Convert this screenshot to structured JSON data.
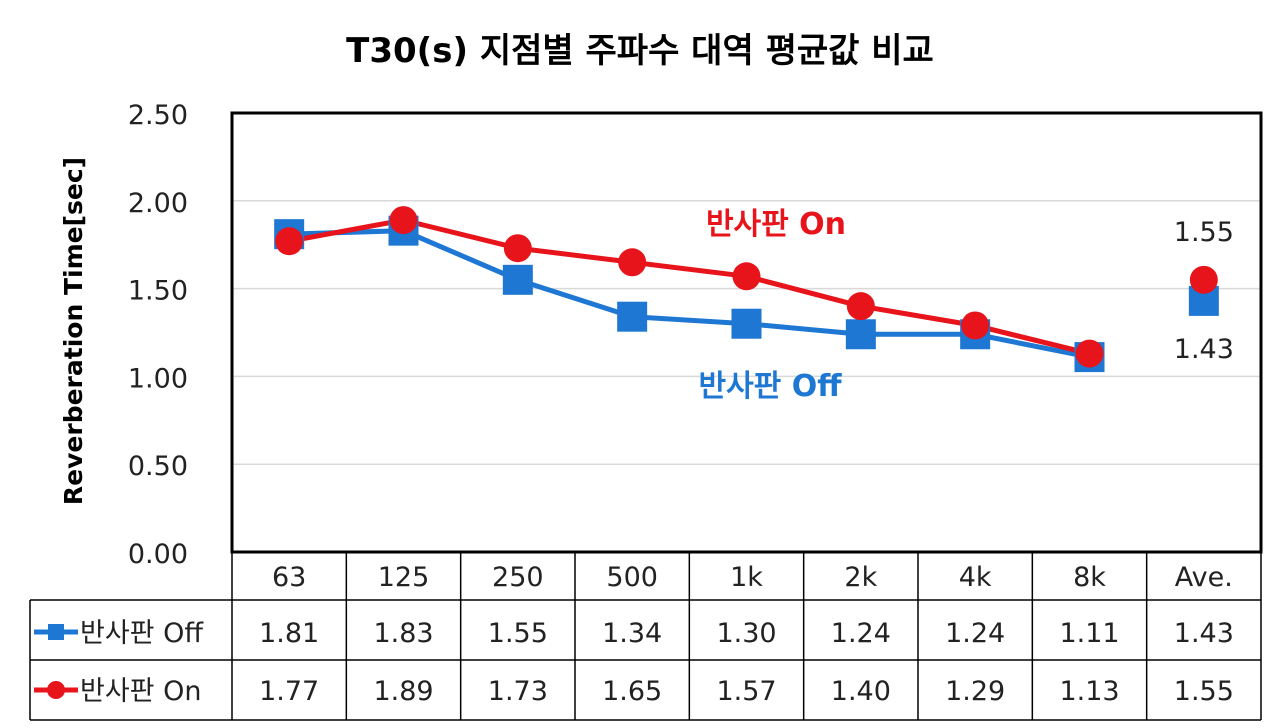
{
  "chart_data": {
    "type": "line",
    "title": "T30(s) 지점별 주파수 대역 평균값 비교",
    "ylabel": "Reverberation Time[sec]",
    "xlabel": "",
    "ylim": [
      0,
      2.5
    ],
    "yticks": [
      "0.00",
      "0.50",
      "1.00",
      "1.50",
      "2.00",
      "2.50"
    ],
    "categories": [
      "63",
      "125",
      "250",
      "500",
      "1k",
      "2k",
      "4k",
      "8k",
      "Ave."
    ],
    "grid": true,
    "legend": "data-table",
    "series": [
      {
        "name": "반사판 Off",
        "color": "#1F77D4",
        "marker": "square",
        "values": [
          1.81,
          1.83,
          1.55,
          1.34,
          1.3,
          1.24,
          1.24,
          1.11,
          1.43
        ],
        "labels": [
          "1.81",
          "1.83",
          "1.55",
          "1.34",
          "1.30",
          "1.24",
          "1.24",
          "1.11",
          "1.43"
        ],
        "annotation": "반사판 Off",
        "ave_label": "1.43"
      },
      {
        "name": "반사판 On",
        "color": "#E8141B",
        "marker": "circle",
        "values": [
          1.77,
          1.89,
          1.73,
          1.65,
          1.57,
          1.4,
          1.29,
          1.13,
          1.55
        ],
        "labels": [
          "1.77",
          "1.89",
          "1.73",
          "1.65",
          "1.57",
          "1.40",
          "1.29",
          "1.13",
          "1.55"
        ],
        "annotation": "반사판 On",
        "ave_label": "1.55"
      }
    ]
  }
}
